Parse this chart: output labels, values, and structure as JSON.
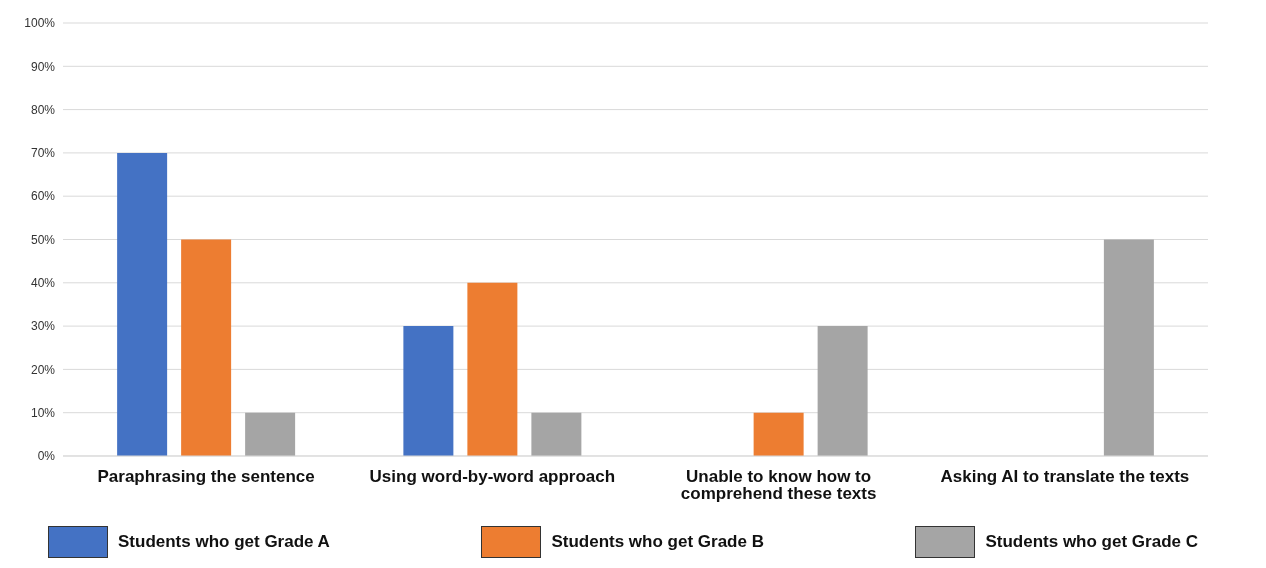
{
  "chart_data": {
    "type": "bar",
    "categories": [
      "Paraphrasing the sentence",
      "Using word-by-word approach",
      "Unable to know how to comprehend these texts",
      "Asking AI to translate the texts"
    ],
    "series": [
      {
        "name": "Students who get Grade A",
        "color": "#4472c4",
        "values": [
          70,
          30,
          0,
          0
        ]
      },
      {
        "name": "Students who get Grade B",
        "color": "#ed7d31",
        "values": [
          50,
          40,
          10,
          0
        ]
      },
      {
        "name": "Students who get Grade C",
        "color": "#a5a5a5",
        "values": [
          10,
          10,
          30,
          50
        ]
      }
    ],
    "ylim": [
      0,
      100
    ],
    "yticks": [
      {
        "value": 0,
        "label": "0%"
      },
      {
        "value": 10,
        "label": "10%"
      },
      {
        "value": 20,
        "label": "20%"
      },
      {
        "value": 30,
        "label": "30%"
      },
      {
        "value": 40,
        "label": "40%"
      },
      {
        "value": 50,
        "label": "50%"
      },
      {
        "value": 60,
        "label": "60%"
      },
      {
        "value": 70,
        "label": "70%"
      },
      {
        "value": 80,
        "label": "80%"
      },
      {
        "value": 90,
        "label": "90%"
      },
      {
        "value": 100,
        "label": "100%"
      }
    ],
    "grid": "y",
    "legend": "bottom"
  }
}
